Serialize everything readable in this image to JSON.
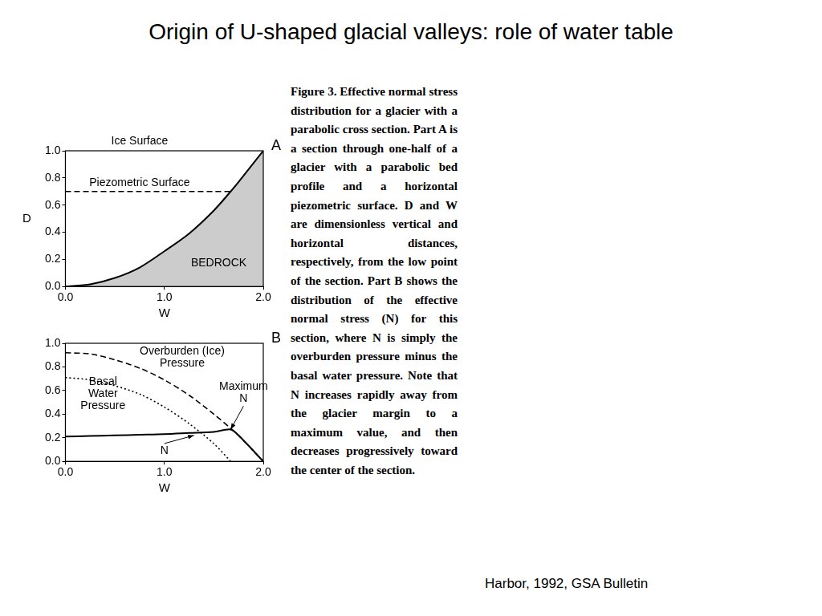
{
  "title": "Origin of U-shaped glacial valleys: role of water table",
  "caption": "Figure 3. Effective normal stress distribution for a glacier with a parabolic cross section. Part A is a section through one-half of a glacier with a parabolic bed profile and a horizontal piezometric surface. D and W are dimensionless vertical and horizontal distances, respectively, from the low point of the section. Part B shows the distribution of the effective normal stress (N) for this section, where N is simply the overburden pressure minus the basal water pressure. Note that N increases rapidly away from the glacier margin to a maximum value, and then decreases progressively toward the center of the section.",
  "source": "Harbor, 1992, GSA Bulletin",
  "chart_data": [
    {
      "type": "line",
      "panel": "A",
      "x_label": "W",
      "y_label": "D",
      "xlim": [
        0,
        2
      ],
      "ylim": [
        0,
        1
      ],
      "xticks": [
        {
          "value": 0,
          "label": "0.0"
        },
        {
          "value": 1,
          "label": "1.0"
        },
        {
          "value": 2,
          "label": "2.0"
        }
      ],
      "yticks": [
        {
          "value": 0,
          "label": "0.0"
        },
        {
          "value": 0.2,
          "label": "0.2"
        },
        {
          "value": 0.4,
          "label": "0.4"
        },
        {
          "value": 0.6,
          "label": "0.6"
        },
        {
          "value": 0.8,
          "label": "0.8"
        },
        {
          "value": 1,
          "label": "1.0"
        }
      ],
      "grid": false,
      "x": [
        0,
        0.25,
        0.5,
        0.75,
        1.0,
        1.25,
        1.5,
        1.67,
        1.75,
        2.0
      ],
      "series": [
        {
          "type": "area",
          "color": "#000000",
          "line_style": "solid",
          "values": [
            0,
            0.016,
            0.063,
            0.14,
            0.26,
            0.39,
            0.56,
            0.7,
            0.77,
            1.0
          ]
        },
        {
          "type": "line",
          "color": "#000000",
          "line_style": "dashed",
          "values": [
            0.7,
            0.7,
            0.7,
            0.7,
            0.7,
            0.7,
            0.7,
            0.7,
            null,
            null
          ]
        }
      ],
      "annotations": [
        {
          "text": "Ice Surface",
          "x": 0.75,
          "y": 1.07
        },
        {
          "text": "Piezometric Surface",
          "x": 0.75,
          "y": 0.76
        },
        {
          "text": "BEDROCK",
          "x": 1.55,
          "y": 0.17
        }
      ]
    },
    {
      "type": "line",
      "panel": "B",
      "x_label": "W",
      "xlim": [
        0,
        2
      ],
      "ylim": [
        0,
        1
      ],
      "xticks": [
        {
          "value": 0,
          "label": "0.0"
        },
        {
          "value": 1,
          "label": "1.0"
        },
        {
          "value": 2,
          "label": "2.0"
        }
      ],
      "yticks": [
        {
          "value": 0,
          "label": "0.0"
        },
        {
          "value": 0.2,
          "label": "0.2"
        },
        {
          "value": 0.4,
          "label": "0.4"
        },
        {
          "value": 0.6,
          "label": "0.6"
        },
        {
          "value": 0.8,
          "label": "0.8"
        },
        {
          "value": 1,
          "label": "1.0"
        }
      ],
      "grid": false,
      "x": [
        0,
        0.25,
        0.5,
        0.75,
        1.0,
        1.25,
        1.5,
        1.67,
        1.75,
        2.0
      ],
      "series": [
        {
          "type": "line",
          "color": "#000000",
          "line_style": "dashed",
          "values": [
            0.92,
            0.91,
            0.86,
            0.79,
            0.69,
            0.56,
            0.4,
            0.28,
            0.22,
            0
          ]
        },
        {
          "type": "line",
          "color": "#000000",
          "line_style": "dotted",
          "values": [
            0.71,
            0.69,
            0.64,
            0.57,
            0.46,
            0.32,
            0.15,
            0,
            null,
            null
          ]
        },
        {
          "type": "line",
          "color": "#000000",
          "line_style": "solid",
          "values": [
            0.21,
            0.215,
            0.22,
            0.225,
            0.23,
            0.24,
            0.25,
            0.27,
            0.22,
            0
          ]
        }
      ],
      "annotations": [
        {
          "text": "Overburden (Ice)\nPressure",
          "x": 1.18,
          "y": 0.88
        },
        {
          "text": "Basal\nWater\nPressure",
          "x": 0.38,
          "y": 0.57
        },
        {
          "text": "Maximum\nN",
          "x": 1.8,
          "y": 0.58,
          "arrow": [
            1.67,
            0.27
          ]
        },
        {
          "text": "N",
          "x": 1.0,
          "y": 0.09,
          "arrow": [
            1.3,
            0.22
          ]
        }
      ]
    }
  ]
}
